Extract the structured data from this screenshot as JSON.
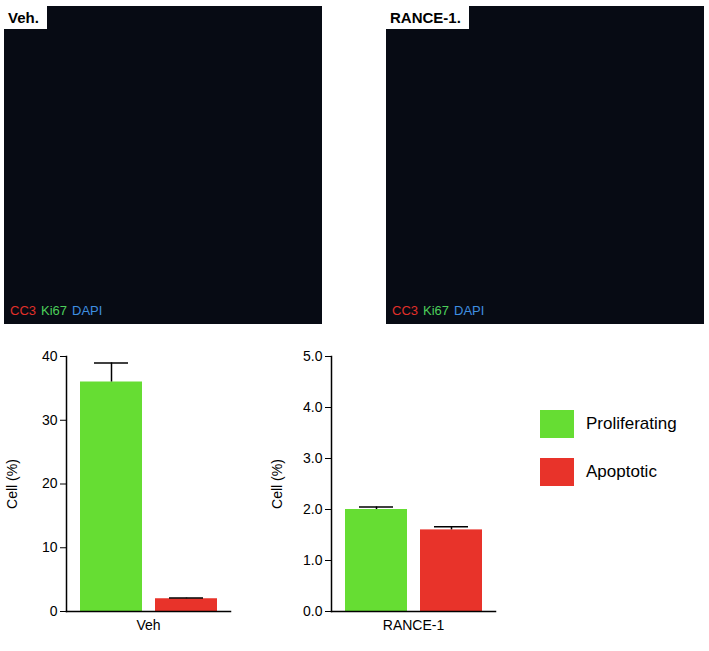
{
  "images": [
    {
      "title": "Veh.",
      "stains": [
        {
          "label": "CC3",
          "color": "#e0302a"
        },
        {
          "label": "Ki67",
          "color": "#4ccf5a"
        },
        {
          "label": "DAPI",
          "color": "#3f8fe0"
        }
      ]
    },
    {
      "title": "RANCE-1.",
      "stains": [
        {
          "label": "CC3",
          "color": "#e0302a"
        },
        {
          "label": "Ki67",
          "color": "#4ccf5a"
        },
        {
          "label": "DAPI",
          "color": "#3f8fe0"
        }
      ]
    }
  ],
  "chart_data": [
    {
      "type": "bar",
      "categories": [
        "Veh"
      ],
      "y_label": "Cell (%)",
      "ylim": [
        0,
        40
      ],
      "yticks": [
        0,
        10,
        20,
        30,
        40
      ],
      "legend": "right",
      "series": [
        {
          "name": "Proliferating",
          "color": "#66dd33",
          "values": [
            36
          ],
          "errors": [
            3
          ]
        },
        {
          "name": "Apoptotic",
          "color": "#e8332a",
          "values": [
            2
          ],
          "errors": [
            0.1
          ]
        }
      ]
    },
    {
      "type": "bar",
      "categories": [
        "RANCE-1"
      ],
      "y_label": "Cell (%)",
      "ylim": [
        0,
        5
      ],
      "yticks": [
        0,
        1,
        2,
        3,
        4,
        5
      ],
      "legend": "right",
      "series": [
        {
          "name": "Proliferating",
          "color": "#66dd33",
          "values": [
            2.0
          ],
          "errors": [
            0.05
          ]
        },
        {
          "name": "Apoptotic",
          "color": "#e8332a",
          "values": [
            1.6
          ],
          "errors": [
            0.06
          ]
        }
      ]
    }
  ]
}
